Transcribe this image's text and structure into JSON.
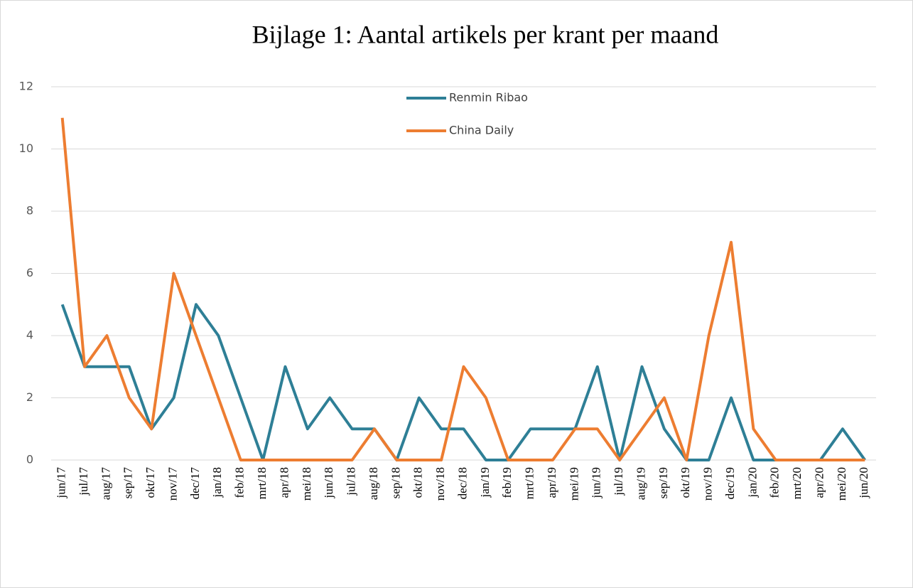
{
  "chart_data": {
    "type": "line",
    "title": "Bijlage 1: Aantal artikels per krant per maand",
    "categories": [
      "jun/17",
      "jul/17",
      "aug/17",
      "sep/17",
      "okt/17",
      "nov/17",
      "dec/17",
      "jan/18",
      "feb/18",
      "mrt/18",
      "apr/18",
      "mei/18",
      "jun/18",
      "jul/18",
      "aug/18",
      "sep/18",
      "okt/18",
      "nov/18",
      "dec/18",
      "jan/19",
      "feb/19",
      "mrt/19",
      "apr/19",
      "mei/19",
      "jun/19",
      "jul/19",
      "aug/19",
      "sep/19",
      "okt/19",
      "nov/19",
      "dec/19",
      "jan/20",
      "feb/20",
      "mrt/20",
      "apr/20",
      "mei/20",
      "jun/20"
    ],
    "series": [
      {
        "name": "Renmin Ribao",
        "color": "#2e7f96",
        "values": [
          5,
          3,
          3,
          3,
          1,
          2,
          5,
          4,
          2,
          0,
          3,
          1,
          2,
          1,
          1,
          0,
          2,
          1,
          1,
          0,
          0,
          1,
          1,
          1,
          3,
          0,
          3,
          1,
          0,
          0,
          2,
          0,
          0,
          0,
          0,
          1,
          0
        ]
      },
      {
        "name": "China Daily",
        "color": "#ed7d31",
        "values": [
          11,
          3,
          4,
          2,
          1,
          6,
          4,
          2,
          0,
          0,
          0,
          0,
          0,
          0,
          1,
          0,
          0,
          0,
          3,
          2,
          0,
          0,
          0,
          1,
          1,
          0,
          1,
          2,
          0,
          4,
          7,
          1,
          0,
          0,
          0,
          0,
          0
        ]
      }
    ],
    "ylim": [
      0,
      12
    ],
    "yticks": [
      0,
      2,
      4,
      6,
      8,
      10,
      12
    ],
    "grid": true
  }
}
